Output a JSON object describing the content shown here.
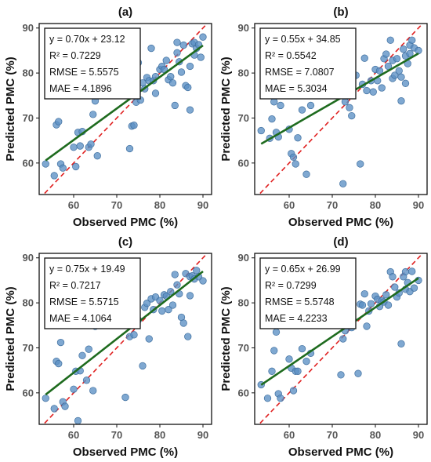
{
  "colors": {
    "points": "#5b8fc4",
    "fit_line": "#1e6b1e",
    "identity_line": "#e02020",
    "frame": "#111111",
    "stats_box_border": "#111111"
  },
  "chart_data": [
    {
      "type": "scatter",
      "panel_label": "(a)",
      "xlabel": "Observed PMC (%)",
      "ylabel": "Predicted PMC (%)",
      "xlim": [
        52,
        92
      ],
      "ylim": [
        53,
        91
      ],
      "xticks": [
        60,
        70,
        80,
        90
      ],
      "yticks": [
        60,
        70,
        80,
        90
      ],
      "grid": false,
      "stats": [
        "y = 0.70x + 23.12",
        "R² = 0.7229",
        "RMSE = 5.5575",
        "MAE = 4.1896"
      ],
      "fit": {
        "slope": 0.7,
        "intercept": 23.12,
        "x_range": [
          53.5,
          90
        ]
      },
      "identity_line": true,
      "points": [
        [
          53.5,
          59.8
        ],
        [
          55.5,
          57.2
        ],
        [
          56,
          68.5
        ],
        [
          56.5,
          69.2
        ],
        [
          57,
          59.8
        ],
        [
          57.5,
          58.9
        ],
        [
          60,
          63.5
        ],
        [
          60.5,
          59.2
        ],
        [
          61,
          66.8
        ],
        [
          61.5,
          63.8
        ],
        [
          62,
          67
        ],
        [
          63.5,
          63.5
        ],
        [
          64,
          64.2
        ],
        [
          64.5,
          70.8
        ],
        [
          65,
          73.8
        ],
        [
          65.5,
          61.6
        ],
        [
          72,
          79.5
        ],
        [
          73,
          63.2
        ],
        [
          73.5,
          68.2
        ],
        [
          74,
          68.4
        ],
        [
          74.5,
          73.5
        ],
        [
          75,
          82.3
        ],
        [
          75.5,
          74
        ],
        [
          76,
          77.8
        ],
        [
          76.5,
          76.5
        ],
        [
          77,
          79
        ],
        [
          77.5,
          78.3
        ],
        [
          78,
          85.5
        ],
        [
          78.5,
          78.3
        ],
        [
          79,
          75.5
        ],
        [
          79,
          79.2
        ],
        [
          80,
          80.8
        ],
        [
          80.5,
          81.5
        ],
        [
          81,
          80.8
        ],
        [
          81.5,
          82.8
        ],
        [
          82,
          78.5
        ],
        [
          82.5,
          79.2
        ],
        [
          83,
          77.8
        ],
        [
          83.5,
          72.8
        ],
        [
          84,
          86.8
        ],
        [
          84,
          84.5
        ],
        [
          84.5,
          82.5
        ],
        [
          85,
          80.2
        ],
        [
          85.5,
          86.2
        ],
        [
          86,
          77.2
        ],
        [
          86.5,
          76.8
        ],
        [
          87,
          71.8
        ],
        [
          87,
          81.5
        ],
        [
          87.5,
          86.5
        ],
        [
          88,
          86.8
        ],
        [
          88,
          84
        ],
        [
          88.5,
          85.5
        ],
        [
          89,
          86.3
        ],
        [
          89.5,
          83.5
        ],
        [
          90,
          88
        ]
      ]
    },
    {
      "type": "scatter",
      "panel_label": "(b)",
      "xlabel": "Observed PMC (%)",
      "ylabel": "Predicted PMC (%)",
      "xlim": [
        52,
        92
      ],
      "ylim": [
        53,
        91
      ],
      "xticks": [
        60,
        70,
        80,
        90
      ],
      "yticks": [
        60,
        70,
        80,
        90
      ],
      "grid": false,
      "stats": [
        "y = 0.55x + 34.85",
        "R² = 0.5542",
        "RMSE = 7.0807",
        "MAE = 5.3034"
      ],
      "fit": {
        "slope": 0.55,
        "intercept": 34.85,
        "x_range": [
          53.5,
          90
        ]
      },
      "identity_line": true,
      "points": [
        [
          53.5,
          67.2
        ],
        [
          55.5,
          65.5
        ],
        [
          56,
          69.8
        ],
        [
          56.5,
          73.6
        ],
        [
          57,
          66.8
        ],
        [
          57.5,
          65.8
        ],
        [
          58,
          72.8
        ],
        [
          60,
          67.5
        ],
        [
          60.5,
          62.1
        ],
        [
          61,
          61.3
        ],
        [
          61.5,
          59.8
        ],
        [
          62,
          65.6
        ],
        [
          63,
          71.8
        ],
        [
          64,
          57.5
        ],
        [
          65,
          72.8
        ],
        [
          72,
          75.2
        ],
        [
          72.5,
          55.4
        ],
        [
          73,
          73.6
        ],
        [
          74,
          72.3
        ],
        [
          74.5,
          70.5
        ],
        [
          75.5,
          79.5
        ],
        [
          76.5,
          59.8
        ],
        [
          77,
          77.5
        ],
        [
          77.5,
          83.3
        ],
        [
          78,
          76.1
        ],
        [
          79,
          78.3
        ],
        [
          79.5,
          75.8
        ],
        [
          80,
          80.8
        ],
        [
          80.5,
          78.3
        ],
        [
          81,
          80.5
        ],
        [
          81.5,
          76.7
        ],
        [
          82,
          83.2
        ],
        [
          82.5,
          84.2
        ],
        [
          83,
          81.5
        ],
        [
          83.5,
          87.3
        ],
        [
          84,
          82.8
        ],
        [
          84,
          78.8
        ],
        [
          84.5,
          79.5
        ],
        [
          85,
          83.2
        ],
        [
          85.5,
          80.5
        ],
        [
          86,
          79.1
        ],
        [
          86,
          73.8
        ],
        [
          86.5,
          85.3
        ],
        [
          87,
          83.8
        ],
        [
          87,
          77.7
        ],
        [
          87.5,
          82.1
        ],
        [
          88,
          86.2
        ],
        [
          88,
          84.3
        ],
        [
          88.5,
          87.3
        ],
        [
          89,
          85.6
        ],
        [
          90,
          85
        ]
      ]
    },
    {
      "type": "scatter",
      "panel_label": "(c)",
      "xlabel": "Observed PMC (%)",
      "ylabel": "Predicted PMC (%)",
      "xlim": [
        52,
        92
      ],
      "ylim": [
        53,
        91
      ],
      "xticks": [
        60,
        70,
        80,
        90
      ],
      "yticks": [
        60,
        70,
        80,
        90
      ],
      "grid": false,
      "stats": [
        "y = 0.75x + 19.49",
        "R² = 0.7217",
        "RMSE = 5.5715",
        "MAE = 4.1064"
      ],
      "fit": {
        "slope": 0.75,
        "intercept": 19.49,
        "x_range": [
          53.5,
          90
        ]
      },
      "identity_line": true,
      "points": [
        [
          53.5,
          58.8
        ],
        [
          55.5,
          56.5
        ],
        [
          56,
          67
        ],
        [
          56.5,
          66.5
        ],
        [
          57,
          71.2
        ],
        [
          57.5,
          58
        ],
        [
          58,
          57
        ],
        [
          60,
          60.8
        ],
        [
          60.5,
          64.8
        ],
        [
          61,
          53.8
        ],
        [
          61.5,
          64.9
        ],
        [
          62,
          68.3
        ],
        [
          63,
          62.8
        ],
        [
          63.5,
          69.7
        ],
        [
          64.5,
          60.5
        ],
        [
          65,
          74.8
        ],
        [
          71,
          79.9
        ],
        [
          72,
          59
        ],
        [
          73,
          72.5
        ],
        [
          74,
          72.9
        ],
        [
          75,
          76.2
        ],
        [
          76,
          66
        ],
        [
          76.5,
          79
        ],
        [
          77,
          79.9
        ],
        [
          77.5,
          72
        ],
        [
          78,
          80.9
        ],
        [
          78.5,
          78.5
        ],
        [
          79,
          81.3
        ],
        [
          80,
          80.5
        ],
        [
          80.5,
          78.2
        ],
        [
          81,
          81.8
        ],
        [
          81.5,
          81.5
        ],
        [
          82,
          78.5
        ],
        [
          82.5,
          82.5
        ],
        [
          83,
          79.5
        ],
        [
          83.5,
          86.3
        ],
        [
          84,
          84
        ],
        [
          84.5,
          82
        ],
        [
          85,
          76.8
        ],
        [
          85.5,
          75.5
        ],
        [
          86,
          86.5
        ],
        [
          86.5,
          72.5
        ],
        [
          87,
          81.6
        ],
        [
          87,
          85.8
        ],
        [
          87.5,
          86
        ],
        [
          88,
          85.3
        ],
        [
          88.5,
          87.2
        ],
        [
          89,
          85.8
        ],
        [
          90,
          84.9
        ]
      ]
    },
    {
      "type": "scatter",
      "panel_label": "(d)",
      "xlabel": "Observed PMC (%)",
      "ylabel": "Predicted PMC (%)",
      "xlim": [
        52,
        92
      ],
      "ylim": [
        53,
        91
      ],
      "xticks": [
        60,
        70,
        80,
        90
      ],
      "yticks": [
        60,
        70,
        80,
        90
      ],
      "grid": false,
      "stats": [
        "y = 0.65x + 26.99",
        "R² = 0.7299",
        "RMSE = 5.5748",
        "MAE = 4.2233"
      ],
      "fit": {
        "slope": 0.65,
        "intercept": 26.99,
        "x_range": [
          53.5,
          90
        ]
      },
      "identity_line": true,
      "points": [
        [
          53.5,
          61.8
        ],
        [
          55,
          58.8
        ],
        [
          56,
          64.8
        ],
        [
          56.5,
          69.4
        ],
        [
          57,
          73.5
        ],
        [
          57.5,
          59.8
        ],
        [
          58,
          58.8
        ],
        [
          60,
          67.5
        ],
        [
          60.5,
          65.5
        ],
        [
          61,
          60.5
        ],
        [
          61.5,
          64.8
        ],
        [
          62,
          64.8
        ],
        [
          63,
          69.8
        ],
        [
          64,
          67
        ],
        [
          65,
          68.8
        ],
        [
          72,
          64
        ],
        [
          72.5,
          72
        ],
        [
          73,
          73.8
        ],
        [
          74.5,
          74.5
        ],
        [
          76,
          64.3
        ],
        [
          76.5,
          79.7
        ],
        [
          77,
          79.5
        ],
        [
          77.5,
          82
        ],
        [
          78,
          74.8
        ],
        [
          78.5,
          78.2
        ],
        [
          79,
          79.8
        ],
        [
          80,
          81.5
        ],
        [
          80.5,
          80.8
        ],
        [
          81,
          79.2
        ],
        [
          81.5,
          80.5
        ],
        [
          82,
          80.2
        ],
        [
          82.5,
          81.8
        ],
        [
          83,
          79.5
        ],
        [
          83.5,
          86.9
        ],
        [
          84,
          85.8
        ],
        [
          84.5,
          83.5
        ],
        [
          85,
          81.3
        ],
        [
          85.5,
          82.2
        ],
        [
          86,
          70.9
        ],
        [
          86.5,
          85.8
        ],
        [
          87,
          86.9
        ],
        [
          87,
          83
        ],
        [
          87.5,
          84.5
        ],
        [
          88,
          82.5
        ],
        [
          88.5,
          87
        ],
        [
          89,
          83.3
        ],
        [
          90,
          85
        ]
      ]
    }
  ]
}
